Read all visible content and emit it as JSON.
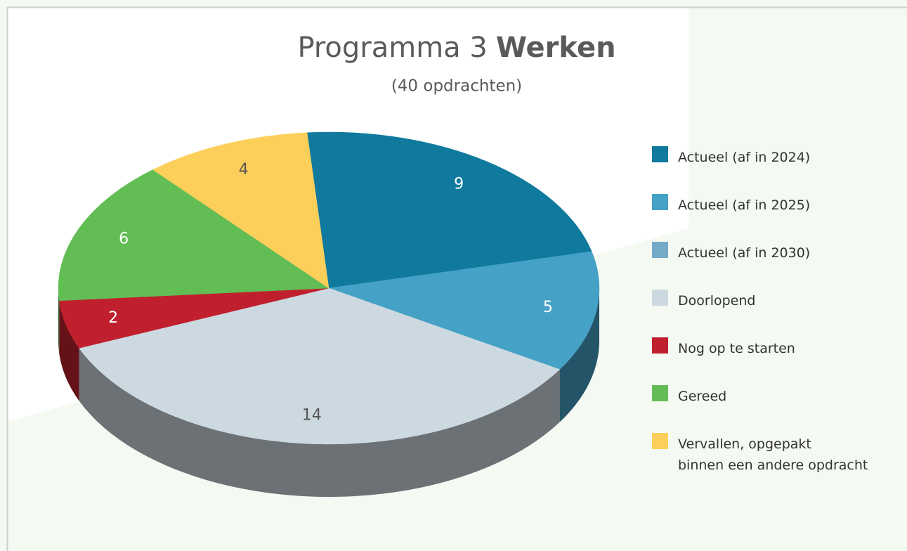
{
  "chart_data": {
    "type": "pie3d",
    "title": [
      "Programma 3",
      "Werken"
    ],
    "subtitle": "(40 opdrachten)",
    "series": [
      {
        "name": "Actueel (af in 2024)",
        "color": "#0f7a9e",
        "values": [
          9
        ]
      },
      {
        "name": "Actueel (af in 2025)",
        "color": "#45a2c6",
        "values": [
          5
        ]
      },
      {
        "name": "Actueel (af in 2030)",
        "color": "#74aac8",
        "values": [
          0
        ]
      },
      {
        "name": "Doorlopend",
        "color": "#cdd9e1",
        "values": [
          14
        ]
      },
      {
        "name": "Nog op te starten",
        "color": "#c0202e",
        "values": [
          2
        ]
      },
      {
        "name": "Gereed",
        "color": "#63bd55",
        "values": [
          6
        ]
      },
      {
        "name": "Vervallen, opgepakt\nbinnen een andere opdracht",
        "color": "#fbcf5a",
        "values": [
          4
        ]
      }
    ],
    "legend": "right"
  }
}
